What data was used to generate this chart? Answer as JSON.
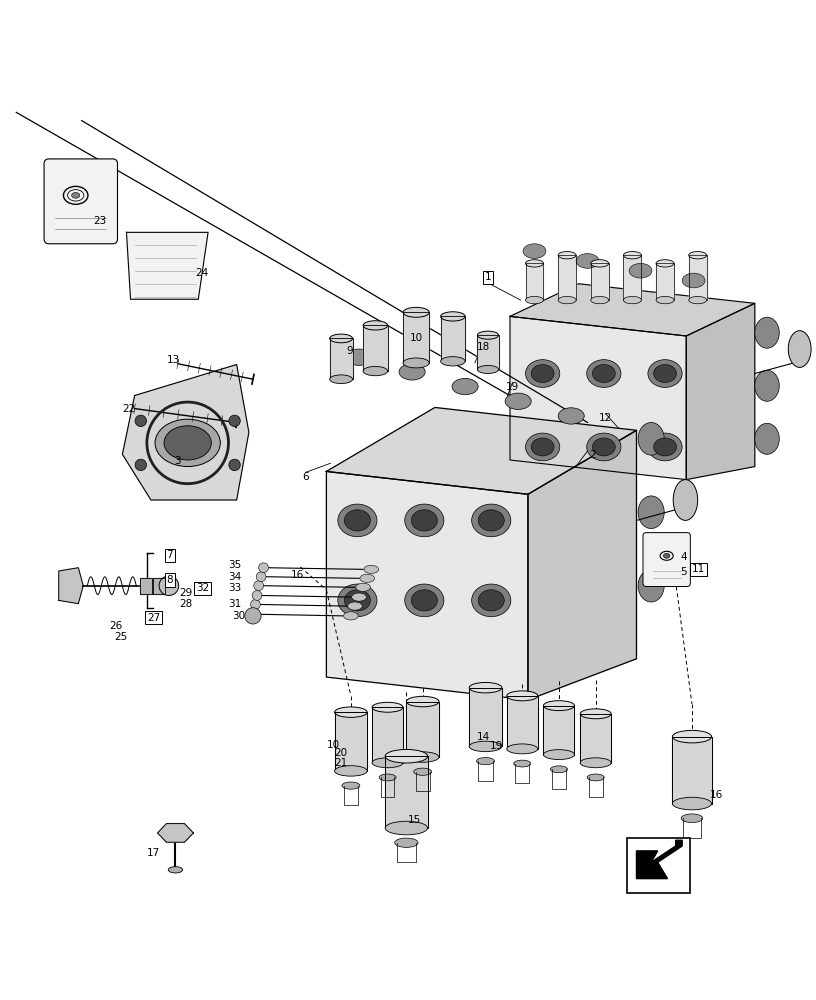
{
  "title": "",
  "background_color": "#ffffff",
  "fig_width": 8.16,
  "fig_height": 10.0,
  "dpi": 100,
  "line_color": "#000000",
  "text_color": "#000000"
}
